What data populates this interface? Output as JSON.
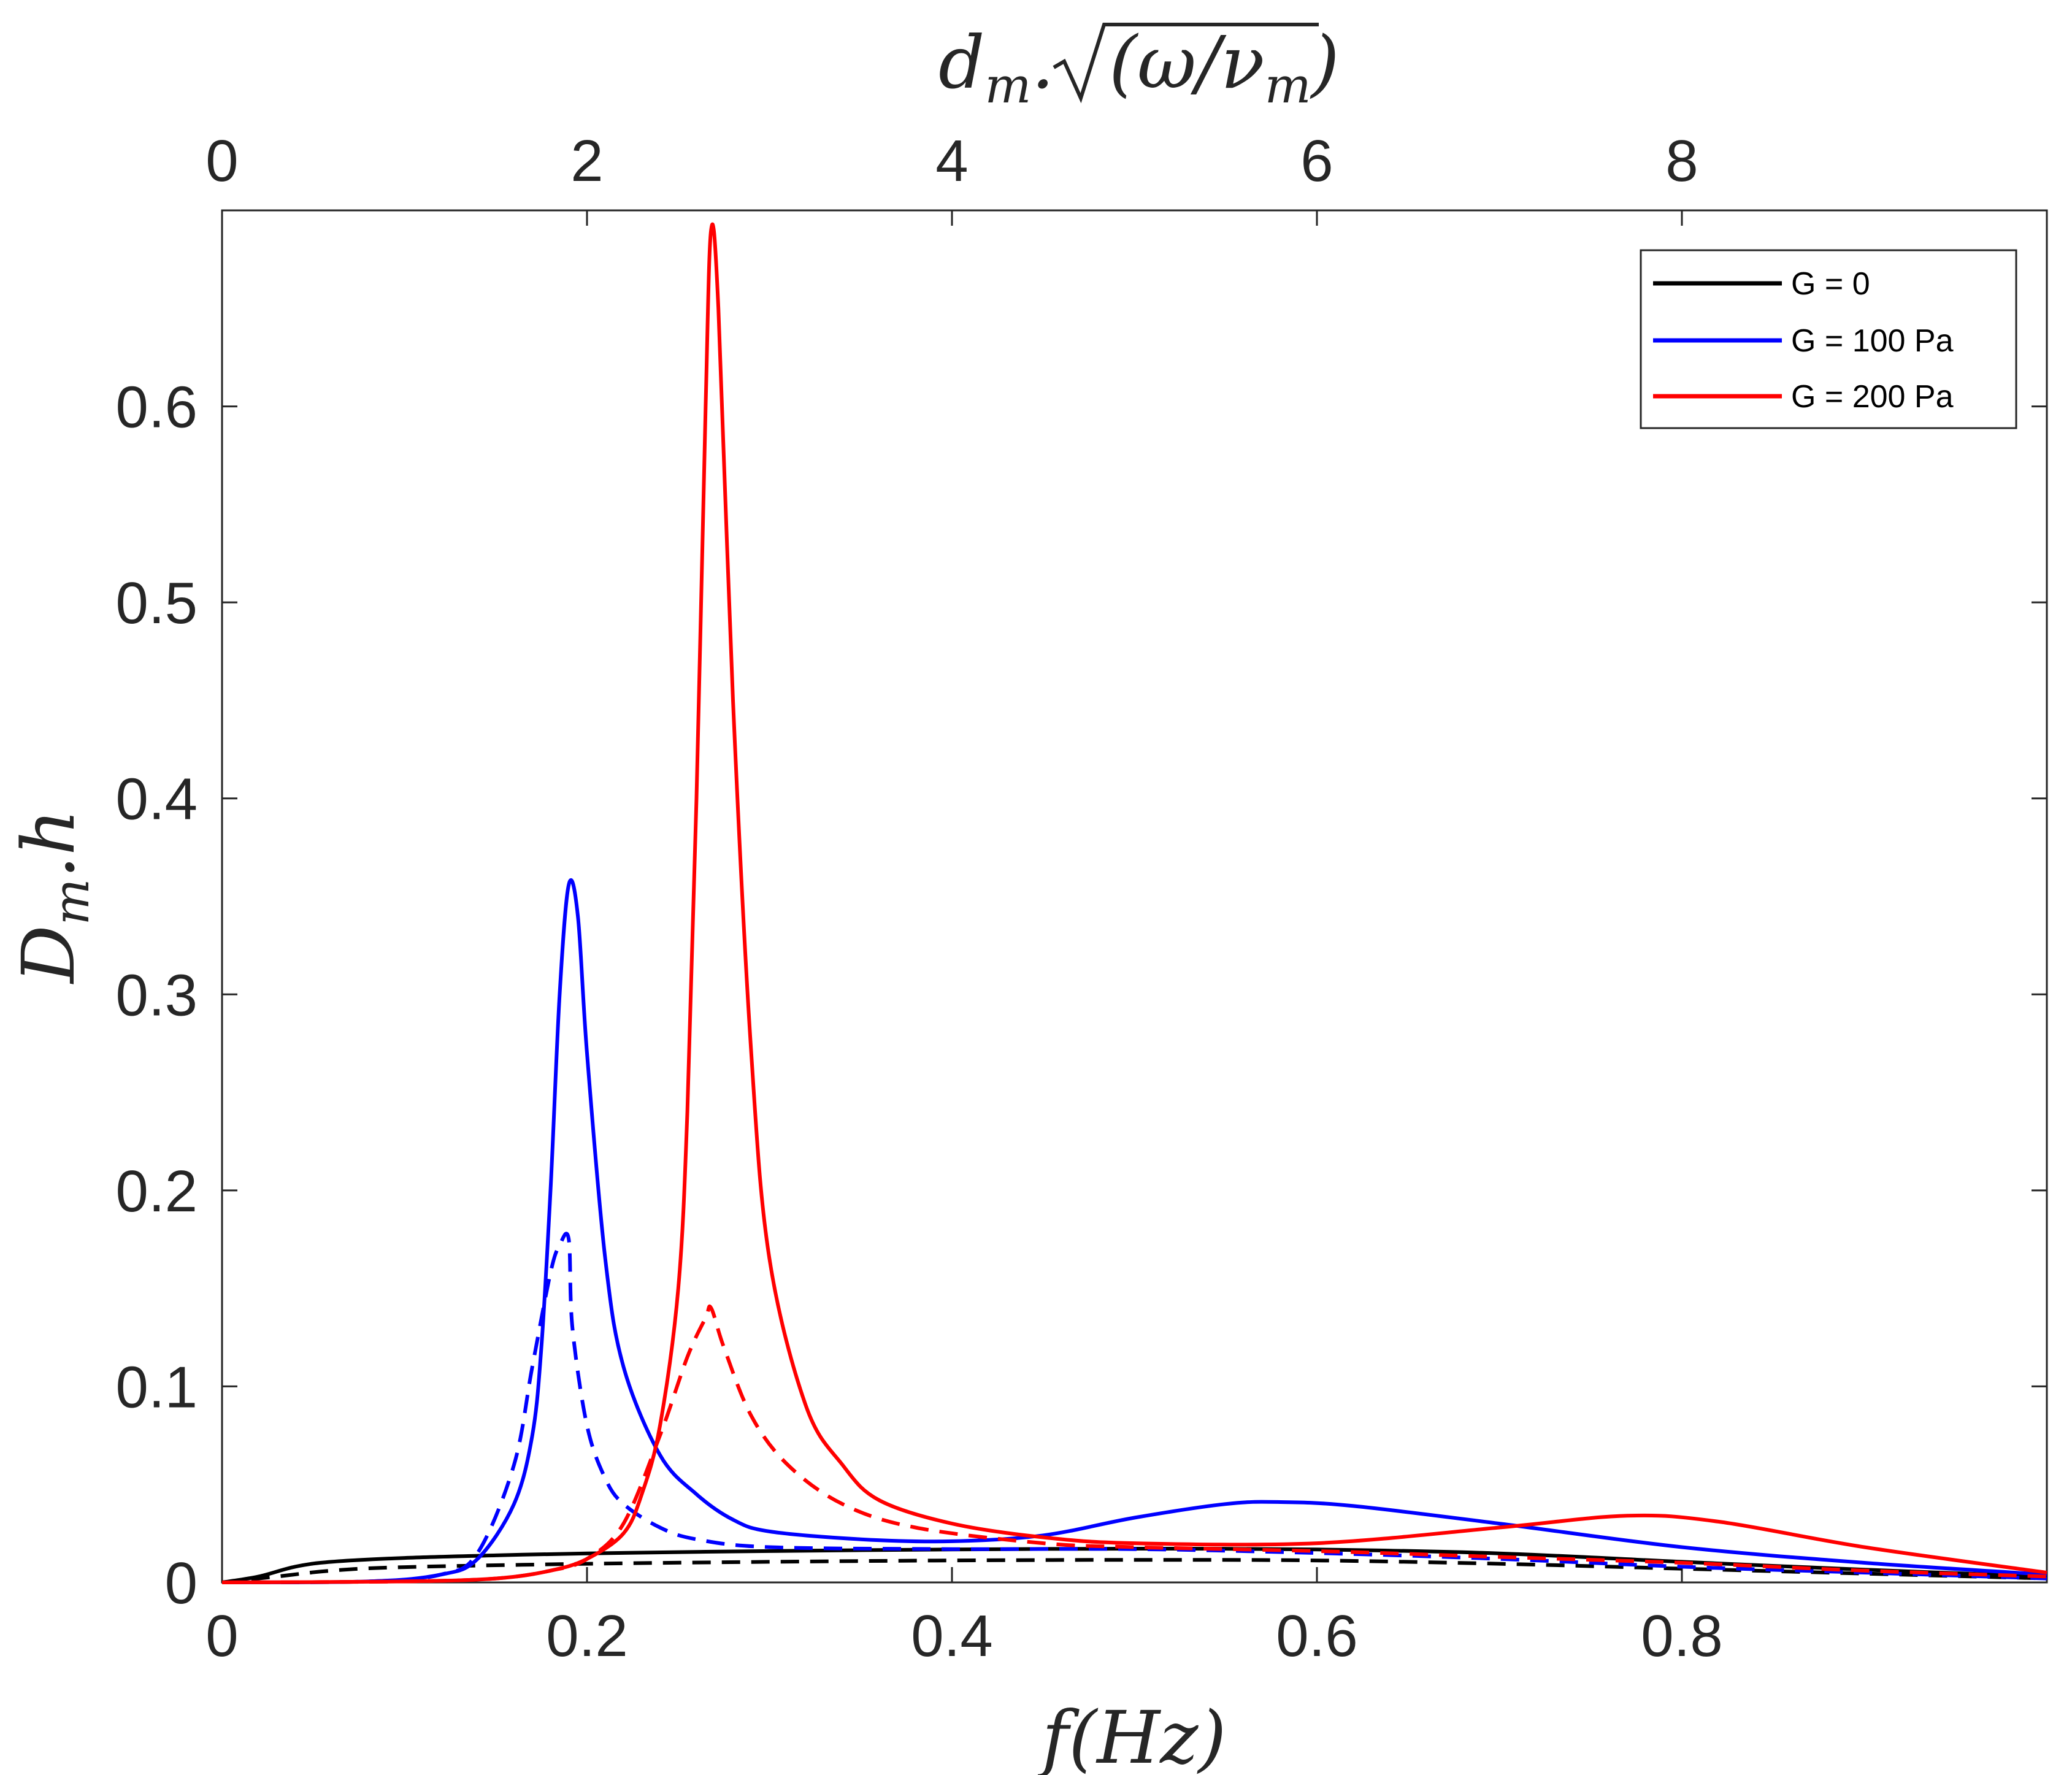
{
  "chart_data": {
    "type": "line",
    "x_axis": {
      "label": "f(Hz)",
      "xlim": [
        0,
        1
      ],
      "ticks": [
        0,
        0.2,
        0.4,
        0.6,
        0.8
      ],
      "tick_labels": [
        "0",
        "0.2",
        "0.4",
        "0.6",
        "0.8"
      ]
    },
    "top_axis": {
      "label": "d_m.√(ω/ν_m)",
      "label_parts": {
        "d": "d",
        "m": "m",
        "dot": ".",
        "radicand": "(ω/ν",
        "radicand_close": ")"
      },
      "xlim": [
        0,
        10
      ],
      "ticks": [
        0,
        2,
        4,
        6,
        8
      ],
      "tick_labels": [
        "0",
        "2",
        "4",
        "6",
        "8"
      ]
    },
    "y_axis": {
      "label": "D_m.h",
      "label_parts": {
        "D": "D",
        "m": "m",
        "rest": ".h"
      },
      "ylim": [
        0,
        0.7
      ],
      "ticks": [
        0,
        0.1,
        0.2,
        0.3,
        0.4,
        0.5,
        0.6
      ],
      "tick_labels": [
        "0",
        "0.1",
        "0.2",
        "0.3",
        "0.4",
        "0.5",
        "0.6"
      ]
    },
    "legend": {
      "placement": "top-right",
      "entries": [
        {
          "label": "G = 0",
          "color": "#000000"
        },
        {
          "label": "G = 100 Pa",
          "color": "#0000ff"
        },
        {
          "label": "G = 200 Pa",
          "color": "#ff0000"
        }
      ]
    },
    "series": [
      {
        "name": "G = 0",
        "style": "solid",
        "color": "#000000",
        "points": [
          [
            0,
            0
          ],
          [
            0.02,
            0.003
          ],
          [
            0.04,
            0.008
          ],
          [
            0.06,
            0.0105
          ],
          [
            0.1,
            0.0125
          ],
          [
            0.15,
            0.0138
          ],
          [
            0.2,
            0.0148
          ],
          [
            0.3,
            0.016
          ],
          [
            0.4,
            0.0168
          ],
          [
            0.5,
            0.0172
          ],
          [
            0.6,
            0.0168
          ],
          [
            0.7,
            0.0148
          ],
          [
            0.8,
            0.0105
          ],
          [
            0.9,
            0.0065
          ],
          [
            1.0,
            0.003
          ]
        ]
      },
      {
        "name": "G = 0",
        "style": "dashed",
        "color": "#000000",
        "points": [
          [
            0,
            0
          ],
          [
            0.03,
            0.003
          ],
          [
            0.06,
            0.006
          ],
          [
            0.1,
            0.0078
          ],
          [
            0.2,
            0.0095
          ],
          [
            0.3,
            0.0105
          ],
          [
            0.4,
            0.0112
          ],
          [
            0.5,
            0.0115
          ],
          [
            0.6,
            0.0112
          ],
          [
            0.7,
            0.0095
          ],
          [
            0.8,
            0.007
          ],
          [
            0.9,
            0.0045
          ],
          [
            1.0,
            0.002
          ]
        ]
      },
      {
        "name": "G = 100 Pa",
        "style": "solid",
        "color": "#0000ff",
        "points": [
          [
            0,
            0
          ],
          [
            0.08,
            0.0005
          ],
          [
            0.12,
            0.004
          ],
          [
            0.14,
            0.012
          ],
          [
            0.16,
            0.04
          ],
          [
            0.17,
            0.075
          ],
          [
            0.175,
            0.12
          ],
          [
            0.18,
            0.2
          ],
          [
            0.185,
            0.3
          ],
          [
            0.19,
            0.356
          ],
          [
            0.195,
            0.34
          ],
          [
            0.2,
            0.27
          ],
          [
            0.21,
            0.165
          ],
          [
            0.22,
            0.11
          ],
          [
            0.24,
            0.065
          ],
          [
            0.26,
            0.045
          ],
          [
            0.28,
            0.032
          ],
          [
            0.3,
            0.026
          ],
          [
            0.35,
            0.022
          ],
          [
            0.4,
            0.021
          ],
          [
            0.45,
            0.024
          ],
          [
            0.5,
            0.033
          ],
          [
            0.55,
            0.04
          ],
          [
            0.58,
            0.041
          ],
          [
            0.62,
            0.039
          ],
          [
            0.7,
            0.03
          ],
          [
            0.8,
            0.018
          ],
          [
            0.9,
            0.01
          ],
          [
            1.0,
            0.004
          ]
        ]
      },
      {
        "name": "G = 100 Pa",
        "style": "dashed",
        "color": "#0000ff",
        "points": [
          [
            0,
            0
          ],
          [
            0.08,
            0.0005
          ],
          [
            0.12,
            0.004
          ],
          [
            0.14,
            0.015
          ],
          [
            0.16,
            0.06
          ],
          [
            0.17,
            0.11
          ],
          [
            0.18,
            0.158
          ],
          [
            0.185,
            0.172
          ],
          [
            0.19,
            0.175
          ],
          [
            0.192,
            0.13
          ],
          [
            0.2,
            0.08
          ],
          [
            0.21,
            0.053
          ],
          [
            0.22,
            0.04
          ],
          [
            0.24,
            0.028
          ],
          [
            0.26,
            0.022
          ],
          [
            0.3,
            0.018
          ],
          [
            0.4,
            0.017
          ],
          [
            0.5,
            0.017
          ],
          [
            0.6,
            0.015
          ],
          [
            0.7,
            0.012
          ],
          [
            0.8,
            0.008
          ],
          [
            0.9,
            0.005
          ],
          [
            1.0,
            0.002
          ]
        ]
      },
      {
        "name": "G = 200 Pa",
        "style": "solid",
        "color": "#ff0000",
        "points": [
          [
            0,
            0
          ],
          [
            0.1,
            0.0005
          ],
          [
            0.15,
            0.002
          ],
          [
            0.18,
            0.006
          ],
          [
            0.2,
            0.012
          ],
          [
            0.22,
            0.025
          ],
          [
            0.23,
            0.045
          ],
          [
            0.24,
            0.08
          ],
          [
            0.25,
            0.15
          ],
          [
            0.255,
            0.24
          ],
          [
            0.26,
            0.4
          ],
          [
            0.265,
            0.6
          ],
          [
            0.268,
            0.69
          ],
          [
            0.272,
            0.65
          ],
          [
            0.28,
            0.45
          ],
          [
            0.29,
            0.27
          ],
          [
            0.3,
            0.165
          ],
          [
            0.32,
            0.09
          ],
          [
            0.34,
            0.06
          ],
          [
            0.36,
            0.042
          ],
          [
            0.4,
            0.03
          ],
          [
            0.45,
            0.023
          ],
          [
            0.5,
            0.02
          ],
          [
            0.6,
            0.02
          ],
          [
            0.7,
            0.028
          ],
          [
            0.77,
            0.034
          ],
          [
            0.82,
            0.031
          ],
          [
            0.9,
            0.018
          ],
          [
            1.0,
            0.005
          ]
        ]
      },
      {
        "name": "G = 200 Pa",
        "style": "dashed",
        "color": "#ff0000",
        "points": [
          [
            0,
            0
          ],
          [
            0.1,
            0.0005
          ],
          [
            0.15,
            0.002
          ],
          [
            0.18,
            0.006
          ],
          [
            0.2,
            0.012
          ],
          [
            0.22,
            0.03
          ],
          [
            0.24,
            0.075
          ],
          [
            0.255,
            0.115
          ],
          [
            0.265,
            0.135
          ],
          [
            0.268,
            0.14
          ],
          [
            0.275,
            0.12
          ],
          [
            0.29,
            0.085
          ],
          [
            0.31,
            0.06
          ],
          [
            0.34,
            0.04
          ],
          [
            0.38,
            0.028
          ],
          [
            0.45,
            0.02
          ],
          [
            0.5,
            0.018
          ],
          [
            0.6,
            0.016
          ],
          [
            0.7,
            0.013
          ],
          [
            0.8,
            0.01
          ],
          [
            0.9,
            0.006
          ],
          [
            1.0,
            0.003
          ]
        ]
      }
    ]
  }
}
